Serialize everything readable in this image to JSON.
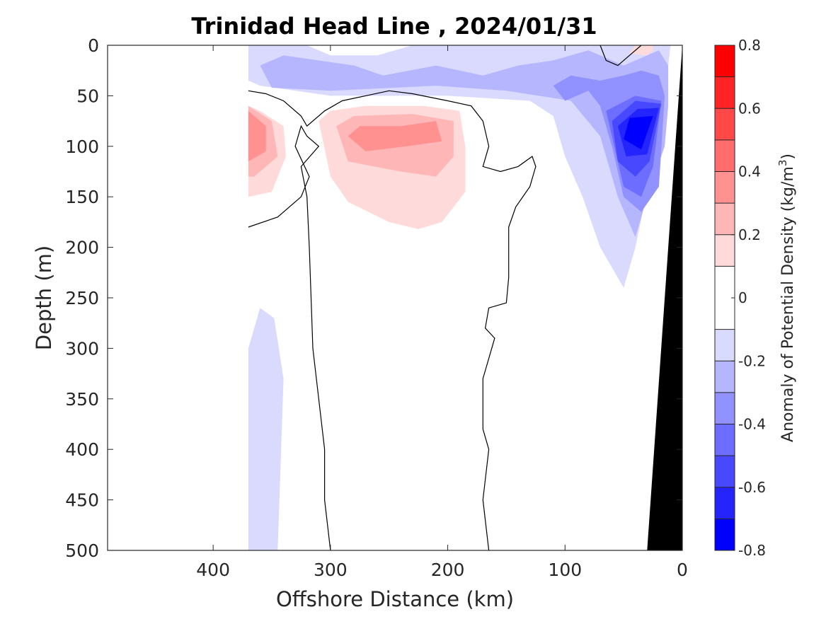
{
  "chart_data": {
    "type": "heatmap",
    "title": "Trinidad Head Line , 2024/01/31",
    "xlabel": "Offshore Distance (km)",
    "ylabel": "Depth (m)",
    "xlim": [
      490,
      0
    ],
    "ylim": [
      500,
      0
    ],
    "x_reversed": true,
    "y_reversed": true,
    "xticks": [
      400,
      300,
      200,
      100,
      0
    ],
    "yticks": [
      0,
      50,
      100,
      150,
      200,
      250,
      300,
      350,
      400,
      450,
      500
    ],
    "colorbar": {
      "label": "Anomaly of Potential Density (kg/m",
      "label_superscript": "3",
      "label_close": ")",
      "range": [
        -0.8,
        0.8
      ],
      "levels": [
        -0.8,
        -0.7,
        -0.6,
        -0.5,
        -0.4,
        -0.3,
        -0.2,
        -0.1,
        0.1,
        0.2,
        0.3,
        0.4,
        0.5,
        0.6,
        0.7,
        0.8
      ],
      "band_colors": [
        "#0000ff",
        "#2424ff",
        "#4848ff",
        "#6d6dff",
        "#9191ff",
        "#b6b6ff",
        "#dadaff",
        "#ffffff",
        "#ffdada",
        "#ffb6b6",
        "#ff9191",
        "#ff6d6d",
        "#ff4848",
        "#ff2424",
        "#ff0000"
      ],
      "ticks": [
        0.8,
        0.6,
        0.4,
        0.2,
        0,
        -0.2,
        -0.4,
        -0.6,
        -0.8
      ],
      "tick_labels": [
        "0.8",
        "0.6",
        "0.4",
        "0.2",
        "0",
        "-0.2",
        "-0.4",
        "-0.6",
        "-0.8"
      ]
    },
    "data_extent_km": 370,
    "bathymetry_color": "#000000",
    "bathymetry": [
      [
        0,
        0
      ],
      [
        0,
        500
      ],
      [
        30,
        500
      ]
    ],
    "contour_color": "#000000",
    "anomaly_regions": [
      {
        "level": -0.1,
        "points": [
          [
            370,
            0
          ],
          [
            320,
            0
          ],
          [
            300,
            10
          ],
          [
            260,
            10
          ],
          [
            230,
            0
          ],
          [
            90,
            0
          ],
          [
            30,
            0
          ],
          [
            10,
            0
          ],
          [
            12,
            20
          ],
          [
            15,
            60
          ],
          [
            40,
            200
          ],
          [
            50,
            240
          ],
          [
            70,
            200
          ],
          [
            85,
            150
          ],
          [
            100,
            110
          ],
          [
            110,
            70
          ],
          [
            130,
            55
          ],
          [
            200,
            50
          ],
          [
            300,
            50
          ],
          [
            360,
            40
          ],
          [
            370,
            35
          ]
        ]
      },
      {
        "level": -0.2,
        "points": [
          [
            360,
            20
          ],
          [
            340,
            10
          ],
          [
            280,
            20
          ],
          [
            255,
            30
          ],
          [
            210,
            20
          ],
          [
            170,
            30
          ],
          [
            140,
            20
          ],
          [
            110,
            15
          ],
          [
            80,
            5
          ],
          [
            50,
            20
          ],
          [
            20,
            5
          ],
          [
            12,
            20
          ],
          [
            12,
            60
          ],
          [
            15,
            100
          ],
          [
            30,
            150
          ],
          [
            40,
            190
          ],
          [
            55,
            150
          ],
          [
            70,
            90
          ],
          [
            95,
            55
          ],
          [
            150,
            45
          ],
          [
            210,
            40
          ],
          [
            300,
            45
          ],
          [
            350,
            42
          ]
        ]
      },
      {
        "level": -0.3,
        "points": [
          [
            15,
            50
          ],
          [
            20,
            140
          ],
          [
            35,
            165
          ],
          [
            50,
            150
          ],
          [
            60,
            100
          ],
          [
            70,
            60
          ],
          [
            80,
            45
          ],
          [
            100,
            55
          ],
          [
            110,
            40
          ],
          [
            95,
            30
          ],
          [
            70,
            35
          ],
          [
            50,
            30
          ],
          [
            35,
            25
          ],
          [
            20,
            30
          ]
        ]
      },
      {
        "level": -0.4,
        "points": [
          [
            18,
            55
          ],
          [
            25,
            120
          ],
          [
            35,
            150
          ],
          [
            50,
            140
          ],
          [
            60,
            90
          ],
          [
            65,
            65
          ],
          [
            40,
            50
          ]
        ]
      },
      {
        "level": -0.5,
        "points": [
          [
            18,
            58
          ],
          [
            28,
            115
          ],
          [
            40,
            130
          ],
          [
            55,
            115
          ],
          [
            60,
            75
          ],
          [
            40,
            55
          ]
        ]
      },
      {
        "level": -0.6,
        "points": [
          [
            20,
            62
          ],
          [
            30,
            108
          ],
          [
            48,
            110
          ],
          [
            55,
            80
          ],
          [
            38,
            63
          ]
        ]
      },
      {
        "level": -0.7,
        "points": [
          [
            25,
            70
          ],
          [
            35,
            103
          ],
          [
            50,
            93
          ],
          [
            45,
            72
          ]
        ]
      },
      {
        "level": -0.1,
        "points": [
          [
            370,
            300
          ],
          [
            360,
            260
          ],
          [
            348,
            270
          ],
          [
            340,
            330
          ],
          [
            345,
            500
          ],
          [
            370,
            500
          ]
        ]
      },
      {
        "level": 0.1,
        "points": [
          [
            370,
            60
          ],
          [
            360,
            65
          ],
          [
            340,
            80
          ],
          [
            338,
            110
          ],
          [
            350,
            145
          ],
          [
            370,
            150
          ]
        ]
      },
      {
        "level": 0.2,
        "points": [
          [
            370,
            60
          ],
          [
            350,
            75
          ],
          [
            345,
            110
          ],
          [
            365,
            130
          ],
          [
            370,
            130
          ]
        ]
      },
      {
        "level": 0.3,
        "points": [
          [
            370,
            65
          ],
          [
            355,
            80
          ],
          [
            355,
            105
          ],
          [
            370,
            115
          ]
        ]
      },
      {
        "level": 0.1,
        "points": [
          [
            310,
            75
          ],
          [
            300,
            130
          ],
          [
            285,
            155
          ],
          [
            250,
            175
          ],
          [
            225,
            182
          ],
          [
            205,
            175
          ],
          [
            185,
            145
          ],
          [
            185,
            100
          ],
          [
            190,
            65
          ],
          [
            220,
            60
          ],
          [
            270,
            60
          ],
          [
            300,
            65
          ]
        ]
      },
      {
        "level": 0.2,
        "points": [
          [
            295,
            80
          ],
          [
            285,
            115
          ],
          [
            240,
            125
          ],
          [
            210,
            130
          ],
          [
            195,
            110
          ],
          [
            195,
            75
          ],
          [
            230,
            68
          ],
          [
            280,
            70
          ]
        ]
      },
      {
        "level": 0.3,
        "points": [
          [
            285,
            90
          ],
          [
            270,
            105
          ],
          [
            235,
            100
          ],
          [
            205,
            95
          ],
          [
            210,
            75
          ],
          [
            240,
            80
          ],
          [
            275,
            80
          ]
        ]
      },
      {
        "level": 0.1,
        "points": [
          [
            25,
            5
          ],
          [
            30,
            10
          ],
          [
            45,
            8
          ],
          [
            40,
            0
          ],
          [
            25,
            0
          ]
        ]
      }
    ],
    "zero_contours": [
      [
        [
          370,
          45
        ],
        [
          355,
          48
        ],
        [
          340,
          55
        ],
        [
          325,
          70
        ],
        [
          320,
          80
        ],
        [
          305,
          65
        ],
        [
          290,
          55
        ],
        [
          270,
          50
        ],
        [
          250,
          45
        ],
        [
          230,
          48
        ],
        [
          200,
          55
        ],
        [
          180,
          60
        ],
        [
          170,
          75
        ],
        [
          165,
          100
        ],
        [
          170,
          120
        ],
        [
          155,
          125
        ],
        [
          140,
          120
        ],
        [
          128,
          110
        ],
        [
          125,
          120
        ],
        [
          130,
          140
        ],
        [
          142,
          160
        ],
        [
          148,
          180
        ],
        [
          148,
          230
        ],
        [
          150,
          255
        ],
        [
          165,
          260
        ],
        [
          168,
          280
        ],
        [
          160,
          290
        ],
        [
          165,
          310
        ],
        [
          170,
          330
        ],
        [
          170,
          380
        ],
        [
          165,
          400
        ],
        [
          170,
          450
        ],
        [
          165,
          500
        ]
      ],
      [
        [
          370,
          180
        ],
        [
          345,
          170
        ],
        [
          325,
          150
        ],
        [
          318,
          130
        ],
        [
          330,
          100
        ],
        [
          325,
          80
        ],
        [
          320,
          90
        ],
        [
          310,
          100
        ],
        [
          325,
          120
        ],
        [
          320,
          150
        ],
        [
          318,
          200
        ],
        [
          315,
          300
        ],
        [
          310,
          350
        ],
        [
          305,
          400
        ],
        [
          305,
          450
        ],
        [
          300,
          500
        ]
      ],
      [
        [
          70,
          0
        ],
        [
          65,
          15
        ],
        [
          55,
          20
        ],
        [
          45,
          10
        ],
        [
          35,
          0
        ]
      ]
    ]
  }
}
